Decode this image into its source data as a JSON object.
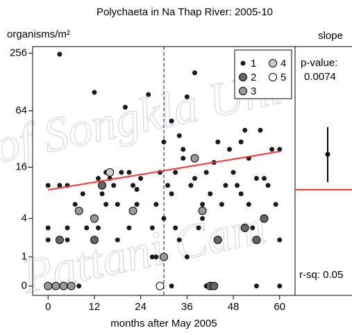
{
  "chart_data": {
    "type": "scatter",
    "title": "Polychaeta in Na Thap River: 2005-10",
    "y_label": "organisms/m²",
    "x_label": "months after May 2005",
    "yscale": "log2(y+1)",
    "xlim": [
      -4,
      64
    ],
    "xticks": [
      0,
      12,
      24,
      36,
      48,
      60
    ],
    "ylim": [
      -0.2,
      300
    ],
    "yticks": [
      0,
      1,
      4,
      16,
      64,
      256
    ],
    "series": [
      {
        "name": "1",
        "color": "#1a1a1a",
        "x": [
          0,
          0,
          0,
          3,
          3,
          5,
          5,
          5,
          7,
          9,
          10,
          12,
          13,
          13,
          14,
          15,
          15,
          16,
          17,
          18,
          18,
          19,
          20,
          21,
          21,
          22,
          23,
          23,
          24,
          26,
          27,
          27,
          28,
          28,
          29,
          30,
          30,
          31,
          32,
          32,
          33,
          33,
          34,
          34,
          35,
          35,
          36,
          36,
          37,
          38,
          38,
          39,
          40,
          40,
          41,
          42,
          43,
          44,
          45,
          46,
          47,
          48,
          49,
          50,
          50,
          51,
          52,
          52,
          53,
          54,
          55,
          56,
          57,
          58,
          59,
          60,
          60,
          0,
          8,
          32,
          41,
          54,
          60
        ],
        "values": [
          10,
          3,
          2,
          250,
          10,
          3,
          10,
          2,
          6,
          8,
          3,
          100,
          12,
          3,
          8,
          14,
          6,
          12,
          10,
          2,
          6,
          14,
          70,
          14,
          3,
          10,
          6,
          9,
          12,
          95,
          1,
          3,
          6,
          1,
          14,
          30,
          4,
          10,
          50,
          8,
          3,
          14,
          35,
          2,
          20,
          25,
          90,
          1,
          10,
          160,
          12,
          3,
          6,
          4,
          14,
          8,
          18,
          30,
          6,
          10,
          25,
          14,
          10,
          8,
          30,
          40,
          20,
          6,
          3,
          12,
          40,
          12,
          10,
          25,
          6,
          25,
          2,
          0,
          0,
          0,
          0,
          0,
          0
        ]
      },
      {
        "name": "2",
        "color": "#666666",
        "x": [
          3,
          12,
          14,
          42,
          43,
          44,
          51,
          54,
          56
        ],
        "values": [
          2,
          2,
          10,
          0,
          0,
          2,
          3,
          2,
          4
        ]
      },
      {
        "name": "3",
        "color": "#999999",
        "x": [
          0,
          2,
          4,
          6,
          8,
          22,
          30,
          38,
          40,
          12
        ],
        "values": [
          0,
          0,
          0,
          0,
          5,
          5,
          1,
          20,
          5,
          4
        ]
      },
      {
        "name": "4",
        "color": "#cccccc",
        "x": [
          16
        ],
        "values": [
          14
        ]
      },
      {
        "name": "5",
        "color": "#ffffff",
        "x": [
          29
        ],
        "values": [
          0
        ]
      }
    ],
    "trend": {
      "color": "#ff3333",
      "x": [
        0,
        60
      ],
      "values": [
        8.9,
        23.7
      ]
    },
    "vline": {
      "x": 30,
      "color": "#0000ee"
    },
    "slope_panel": {
      "title": "slope",
      "p_label": "p-value:",
      "p_value": "0.0074",
      "r_sq": "r-sq: 0.05"
    },
    "watermark": [
      "of Songkla Uni",
      "Pattani Cam"
    ]
  }
}
